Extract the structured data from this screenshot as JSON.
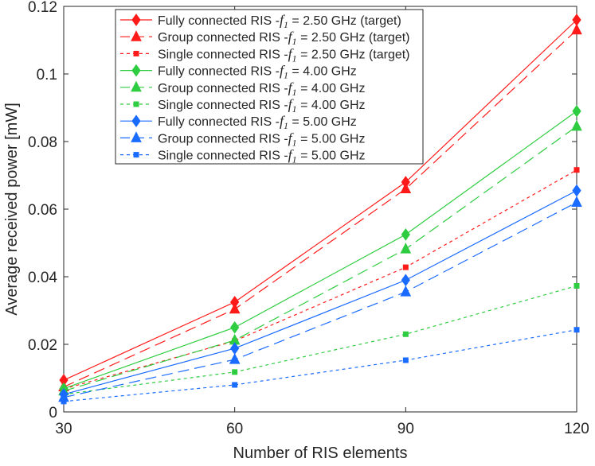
{
  "chart_data": {
    "type": "line",
    "title": "",
    "xlabel": "Number of RIS elements",
    "ylabel": "Average received power [mW]",
    "xlim": [
      30,
      120
    ],
    "ylim": [
      0,
      0.12
    ],
    "xticks": [
      "30",
      "60",
      "90",
      "120"
    ],
    "xtick_values": [
      30,
      60,
      90,
      120
    ],
    "yticks": [
      "0",
      "0.02",
      "0.04",
      "0.06",
      "0.08",
      "0.1",
      "0.12"
    ],
    "ytick_values": [
      0,
      0.02,
      0.04,
      0.06,
      0.08,
      0.1,
      0.12
    ],
    "grid": false,
    "legend_position": "top-left",
    "x": [
      30,
      60,
      90,
      120
    ],
    "series": [
      {
        "name": "Fully connected RIS -f1 = 2.50 GHz (target)",
        "prefix": "Fully connected RIS -",
        "var": "f",
        "sub": "1",
        "suffix": " = 2.50 GHz (target)",
        "color": "#ff1a1a",
        "style": "solid",
        "marker": "diamond",
        "values": [
          0.0094,
          0.0325,
          0.068,
          0.116
        ]
      },
      {
        "name": "Group connected RIS -f1 = 2.50 GHz (target)",
        "prefix": "Group connected RIS -",
        "var": "f",
        "sub": "1",
        "suffix": " = 2.50 GHz (target)",
        "color": "#ff1a1a",
        "style": "long-dash",
        "marker": "triangle",
        "values": [
          0.0074,
          0.0304,
          0.066,
          0.113
        ]
      },
      {
        "name": "Single connected RIS -f1 = 2.50 GHz (target)",
        "prefix": "Single connected RIS -",
        "var": "f",
        "sub": "1",
        "suffix": " = 2.50 GHz (target)",
        "color": "#ff1a1a",
        "style": "short-dash",
        "marker": "square",
        "values": [
          0.0068,
          0.021,
          0.0428,
          0.0716
        ]
      },
      {
        "name": "Fully connected RIS -f1 = 4.00 GHz",
        "prefix": "Fully connected RIS -",
        "var": "f",
        "sub": "1",
        "suffix": " = 4.00 GHz",
        "color": "#2ecc40",
        "style": "solid",
        "marker": "diamond",
        "values": [
          0.0069,
          0.025,
          0.0525,
          0.089
        ]
      },
      {
        "name": "Group connected RIS -f1 = 4.00 GHz",
        "prefix": "Group connected RIS -",
        "var": "f",
        "sub": "1",
        "suffix": " = 4.00 GHz",
        "color": "#2ecc40",
        "style": "long-dash",
        "marker": "triangle",
        "values": [
          0.0062,
          0.0212,
          0.0482,
          0.0845
        ]
      },
      {
        "name": "Single connected RIS -f1 = 4.00 GHz",
        "prefix": "Single connected RIS -",
        "var": "f",
        "sub": "1",
        "suffix": " = 4.00 GHz",
        "color": "#2ecc40",
        "style": "short-dash",
        "marker": "square",
        "values": [
          0.0052,
          0.0118,
          0.023,
          0.0373
        ]
      },
      {
        "name": "Fully connected RIS -f1 = 5.00 GHz",
        "prefix": "Fully connected RIS -",
        "var": "f",
        "sub": "1",
        "suffix": " = 5.00 GHz",
        "color": "#1a6bff",
        "style": "solid",
        "marker": "diamond",
        "values": [
          0.0052,
          0.0188,
          0.039,
          0.0655
        ]
      },
      {
        "name": "Group connected RIS -f1 = 5.00 GHz",
        "prefix": "Group connected RIS -",
        "var": "f",
        "sub": "1",
        "suffix": " = 5.00 GHz",
        "color": "#1a6bff",
        "style": "long-dash",
        "marker": "triangle",
        "values": [
          0.0043,
          0.0155,
          0.0355,
          0.062
        ]
      },
      {
        "name": "Single connected RIS -f1 = 5.00 GHz",
        "prefix": "Single connected RIS -",
        "var": "f",
        "sub": "1",
        "suffix": " = 5.00 GHz",
        "color": "#1a6bff",
        "style": "short-dash",
        "marker": "square",
        "values": [
          0.0031,
          0.008,
          0.0153,
          0.0243
        ]
      }
    ]
  }
}
